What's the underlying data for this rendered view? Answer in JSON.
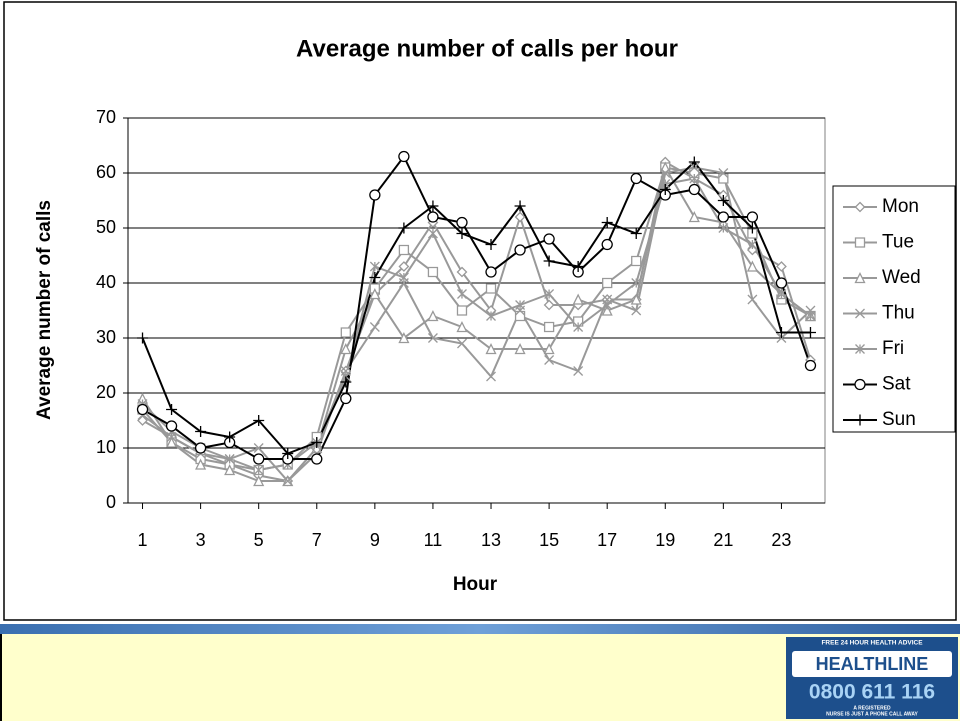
{
  "chart_data": {
    "type": "line",
    "title": "Average number of calls per hour",
    "xlabel": "Hour",
    "ylabel": "Average number of calls",
    "x": [
      1,
      2,
      3,
      4,
      5,
      6,
      7,
      8,
      9,
      10,
      11,
      12,
      13,
      14,
      15,
      16,
      17,
      18,
      19,
      20,
      21,
      22,
      23,
      24
    ],
    "xlim": [
      0.5,
      24.5
    ],
    "xticks": [
      1,
      3,
      5,
      7,
      9,
      11,
      13,
      15,
      17,
      19,
      21,
      23
    ],
    "ylim": [
      0,
      70
    ],
    "yticks": [
      0,
      10,
      20,
      30,
      40,
      50,
      60,
      70
    ],
    "grid": true,
    "legend": "right",
    "series": [
      {
        "name": "Mon",
        "color": "#999999",
        "marker": "diamond",
        "values": [
          15,
          12,
          9,
          7,
          5,
          4,
          10,
          24,
          38,
          43,
          51,
          42,
          35,
          52,
          36,
          36,
          37,
          37,
          62,
          59,
          56,
          46,
          43,
          26
        ]
      },
      {
        "name": "Tue",
        "color": "#999999",
        "marker": "square",
        "values": [
          17,
          11,
          8,
          7,
          6,
          7,
          12,
          31,
          39,
          46,
          42,
          35,
          39,
          34,
          32,
          33,
          40,
          44,
          61,
          60,
          59,
          49,
          37,
          34
        ]
      },
      {
        "name": "Wed",
        "color": "#999999",
        "marker": "triangle",
        "values": [
          19,
          11,
          7,
          6,
          4,
          4,
          10,
          28,
          38,
          30,
          34,
          32,
          28,
          28,
          28,
          37,
          35,
          37,
          61,
          52,
          51,
          43,
          38,
          34
        ]
      },
      {
        "name": "Thu",
        "color": "#999999",
        "marker": "x",
        "values": [
          16,
          12,
          9,
          8,
          10,
          4,
          9,
          24,
          32,
          40,
          30,
          29,
          23,
          35,
          26,
          24,
          37,
          35,
          60,
          61,
          60,
          37,
          30,
          35
        ]
      },
      {
        "name": "Fri",
        "color": "#999999",
        "marker": "star",
        "values": [
          18,
          13,
          10,
          8,
          6,
          7,
          11,
          23,
          43,
          41,
          49,
          38,
          34,
          36,
          38,
          32,
          36,
          40,
          58,
          59,
          50,
          47,
          38,
          34
        ]
      },
      {
        "name": "Sat",
        "color": "#000000",
        "marker": "circle",
        "values": [
          17,
          14,
          10,
          11,
          8,
          8,
          8,
          19,
          56,
          63,
          52,
          51,
          42,
          46,
          48,
          42,
          47,
          59,
          56,
          57,
          52,
          52,
          40,
          25
        ]
      },
      {
        "name": "Sun",
        "color": "#000000",
        "marker": "plus",
        "values": [
          30,
          17,
          13,
          12,
          15,
          9,
          11,
          22,
          41,
          50,
          54,
          49,
          47,
          54,
          44,
          43,
          51,
          49,
          57,
          62,
          55,
          50,
          31,
          31
        ]
      }
    ]
  },
  "logo": {
    "tagline": "FREE 24 HOUR HEALTH ADVICE",
    "name": "HEALTHLINE",
    "phone": "0800 611 116",
    "footer_1": "A REGISTERED",
    "footer_2": "NURSE IS JUST A PHONE CALL AWAY"
  }
}
